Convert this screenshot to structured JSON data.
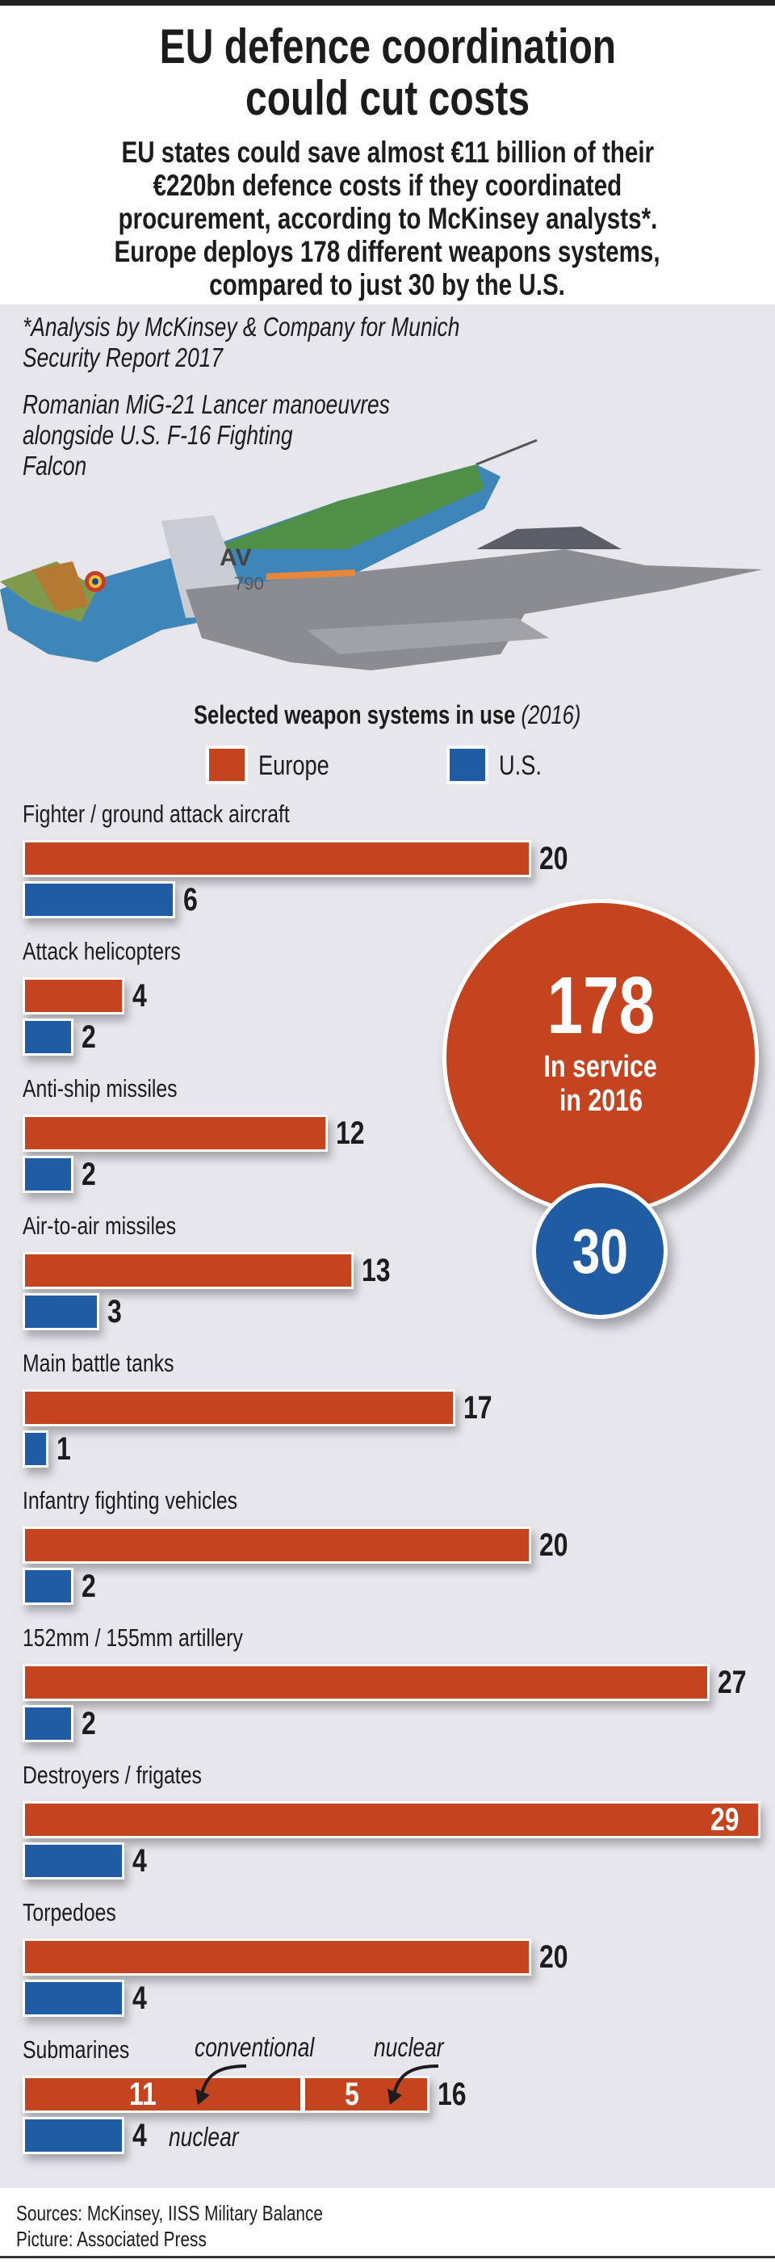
{
  "header": {
    "title_lines": [
      "EU defence coordination",
      "could cut costs"
    ],
    "subtitle_lines": [
      "EU states could save almost €11 billion of their",
      "€220bn defence costs if they coordinated",
      "procurement, according to McKinsey analysts*.",
      "Europe deploys 178 different weapons systems,",
      "compared to just 30 by the U.S."
    ]
  },
  "notes": {
    "footnote_lines": [
      "*Analysis by McKinsey & Company for Munich",
      "Security Report 2017"
    ],
    "caption_lines": [
      "Romanian MiG-21 Lancer manoeuvres",
      "alongside U.S. F-16 Fighting",
      "Falcon"
    ]
  },
  "photo": {
    "tail_code": "AV",
    "serial": "790"
  },
  "circles": {
    "europe_total": "178",
    "europe_label_1": "In service",
    "europe_label_2": "in 2016",
    "us_total": "30"
  },
  "colors": {
    "europe": "#c4441f",
    "us": "#1f5ca3",
    "background": "#e6e6ec"
  },
  "chart_data": {
    "type": "bar",
    "orientation": "horizontal",
    "title": "Selected weapon systems in use",
    "title_suffix": "(2016)",
    "legend": [
      "Europe",
      "U.S."
    ],
    "legend_placement": "top-center",
    "categories": [
      "Fighter / ground attack aircraft",
      "Attack helicopters",
      "Anti-ship missiles",
      "Air-to-air missiles",
      "Main battle tanks",
      "Infantry fighting vehicles",
      "152mm / 155mm artillery",
      "Destroyers / frigates",
      "Torpedoes",
      "Submarines"
    ],
    "series": [
      {
        "name": "Europe",
        "values": [
          20,
          4,
          12,
          13,
          17,
          20,
          27,
          29,
          20,
          16
        ]
      },
      {
        "name": "U.S.",
        "values": [
          6,
          2,
          2,
          3,
          1,
          2,
          2,
          4,
          4,
          4
        ]
      }
    ],
    "submarines_breakdown": {
      "europe": [
        {
          "label": "conventional",
          "value": 11
        },
        {
          "label": "nuclear",
          "value": 5
        }
      ],
      "us_note": "nuclear"
    }
  },
  "footer": {
    "sources": "Sources: McKinsey, IISS Military Balance",
    "picture": "Picture: Associated Press"
  }
}
